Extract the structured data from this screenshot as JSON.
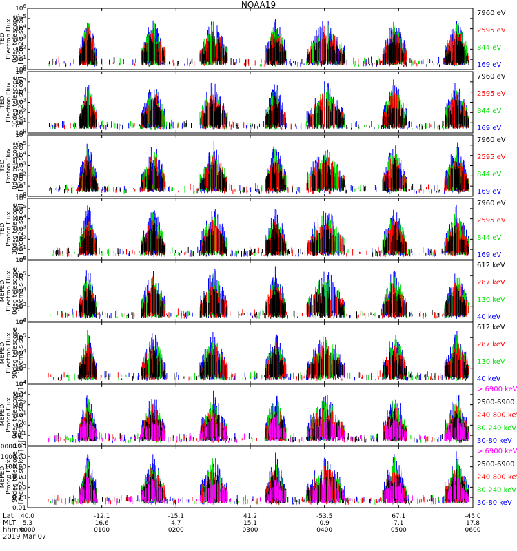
{
  "title": "NOAA19",
  "colors": {
    "black": "#000000",
    "red": "#ff0000",
    "green": "#00e000",
    "blue": "#0000ff",
    "magenta": "#ff00ff"
  },
  "chart_data": [
    {
      "type": "scatter",
      "panel": "ted-electron-0deg",
      "ylabel_lines": [
        "TED",
        "Electron Flux",
        "0deg telescope",
        "[#/cm2-s-str-eV]"
      ],
      "yscale": "log",
      "ylim": [
        1,
        1000000
      ],
      "ytick_labels": [
        "10^0",
        "10^1",
        "10^2",
        "10^3",
        "10^4",
        "10^5",
        "10^6"
      ],
      "series": [
        {
          "name": "7960 eV",
          "color": "black"
        },
        {
          "name": "2595 eV",
          "color": "red"
        },
        {
          "name": "844 eV",
          "color": "green"
        },
        {
          "name": "169 eV",
          "color": "blue"
        }
      ]
    },
    {
      "type": "scatter",
      "panel": "ted-electron-30deg",
      "ylabel_lines": [
        "TED",
        "Electron Flux",
        "30deg telescope",
        "[#/cm2-s-str-eV]"
      ],
      "yscale": "log",
      "ylim": [
        1,
        1000000
      ],
      "ytick_labels": [
        "10^0",
        "10^1",
        "10^2",
        "10^3",
        "10^4",
        "10^5",
        "10^6"
      ],
      "series": [
        {
          "name": "7960 eV",
          "color": "black"
        },
        {
          "name": "2595 eV",
          "color": "red"
        },
        {
          "name": "844 eV",
          "color": "green"
        },
        {
          "name": "169 eV",
          "color": "blue"
        }
      ]
    },
    {
      "type": "scatter",
      "panel": "ted-proton-0deg",
      "ylabel_lines": [
        "TED",
        "Proton Flux",
        "0deg telescope",
        "[#/cm2-s-str-eV]"
      ],
      "yscale": "log",
      "ylim": [
        1,
        1000000
      ],
      "ytick_labels": [
        "10^0",
        "10^1",
        "10^2",
        "10^3",
        "10^4",
        "10^5",
        "10^6"
      ],
      "series": [
        {
          "name": "7960 eV",
          "color": "black"
        },
        {
          "name": "2595 eV",
          "color": "red"
        },
        {
          "name": "844 eV",
          "color": "green"
        },
        {
          "name": "169 eV",
          "color": "blue"
        }
      ]
    },
    {
      "type": "scatter",
      "panel": "ted-proton-30deg",
      "ylabel_lines": [
        "TED",
        "Proton Flux",
        "30deg telescope",
        "[#/cm2-s-str-eV]"
      ],
      "yscale": "log",
      "ylim": [
        1,
        1000000
      ],
      "ytick_labels": [
        "10^0",
        "10^1",
        "10^2",
        "10^3",
        "10^4",
        "10^5",
        "10^6"
      ],
      "series": [
        {
          "name": "7960 eV",
          "color": "black"
        },
        {
          "name": "2595 eV",
          "color": "red"
        },
        {
          "name": "844 eV",
          "color": "green"
        },
        {
          "name": "169 eV",
          "color": "blue"
        }
      ]
    },
    {
      "type": "scatter",
      "panel": "meped-electron-0deg",
      "ylabel_lines": [
        "MEPED",
        "Electron Flux",
        "0deg telescope",
        "[#/cm2-s-str]"
      ],
      "yscale": "log",
      "ylim": [
        100,
        1000000
      ],
      "ytick_labels": [
        "10^2",
        "10^3",
        "10^4",
        "10^5",
        "10^6"
      ],
      "series": [
        {
          "name": "612 keV",
          "color": "black"
        },
        {
          "name": "287 keV",
          "color": "red"
        },
        {
          "name": "130 keV",
          "color": "green"
        },
        {
          "name": "40 keV",
          "color": "blue"
        }
      ]
    },
    {
      "type": "scatter",
      "panel": "meped-electron-90deg",
      "ylabel_lines": [
        "MEPED",
        "Electron Flux",
        "90deg telescope",
        "[#/cm2-s-str]"
      ],
      "yscale": "log",
      "ylim": [
        100,
        1000000
      ],
      "ytick_labels": [
        "10^2",
        "10^3",
        "10^4",
        "10^5",
        "10^6"
      ],
      "series": [
        {
          "name": "612 keV",
          "color": "black"
        },
        {
          "name": "287 keV",
          "color": "red"
        },
        {
          "name": "130 keV",
          "color": "green"
        },
        {
          "name": "40 keV",
          "color": "blue"
        }
      ]
    },
    {
      "type": "scatter",
      "panel": "meped-proton-0deg",
      "ylabel_lines": [
        "MEPED",
        "Proton Flux",
        "0deg telescope",
        "[#/cm2-s-str-keV]"
      ],
      "yscale": "log",
      "ylim": [
        0.01,
        10000
      ],
      "ytick_labels": [
        "10^-2",
        "10^-1",
        "10^0",
        "10^1",
        "10^2",
        "10^3",
        "10^4"
      ],
      "series": [
        {
          "name": "> 6900 keV",
          "color": "magenta"
        },
        {
          "name": "2500-6900",
          "color": "black"
        },
        {
          "name": "240-800 keV",
          "color": "red"
        },
        {
          "name": "80-240 keV",
          "color": "green"
        },
        {
          "name": "30-80 keV",
          "color": "blue"
        }
      ]
    },
    {
      "type": "scatter",
      "panel": "meped-proton-90deg",
      "ylabel_lines": [
        "MEPED",
        "Proton Flux",
        "90deg telescope",
        "[#/cm2-s-str-keV]"
      ],
      "yscale": "log",
      "ylim": [
        0.01,
        10000
      ],
      "ytick_labels": [
        "0.01",
        "0.10",
        "1.00",
        "10.00",
        "100.00",
        "1000.00",
        "10000.00"
      ],
      "series": [
        {
          "name": "> 6900 keV",
          "color": "magenta"
        },
        {
          "name": "2500-6900",
          "color": "black"
        },
        {
          "name": "240-800 keV",
          "color": "red"
        },
        {
          "name": "80-240 keV",
          "color": "green"
        },
        {
          "name": "30-80 keV",
          "color": "blue"
        }
      ]
    }
  ],
  "x_axis": {
    "row_labels": [
      "Lat",
      "MLT",
      "hhmm"
    ],
    "date": "2019 Mar 07",
    "ticks": [
      {
        "lat": "40.0",
        "mlt": "5.3",
        "hhmm": "0000"
      },
      {
        "lat": "-12.1",
        "mlt": "16.6",
        "hhmm": "0100"
      },
      {
        "lat": "-15.1",
        "mlt": "4.7",
        "hhmm": "0200"
      },
      {
        "lat": "41.2",
        "mlt": "15.1",
        "hhmm": "0300"
      },
      {
        "lat": "-53.5",
        "mlt": "0.9",
        "hhmm": "0400"
      },
      {
        "lat": "67.1",
        "mlt": "7.1",
        "hhmm": "0500"
      },
      {
        "lat": "-45.0",
        "mlt": "17.8",
        "hhmm": "0600"
      }
    ]
  }
}
